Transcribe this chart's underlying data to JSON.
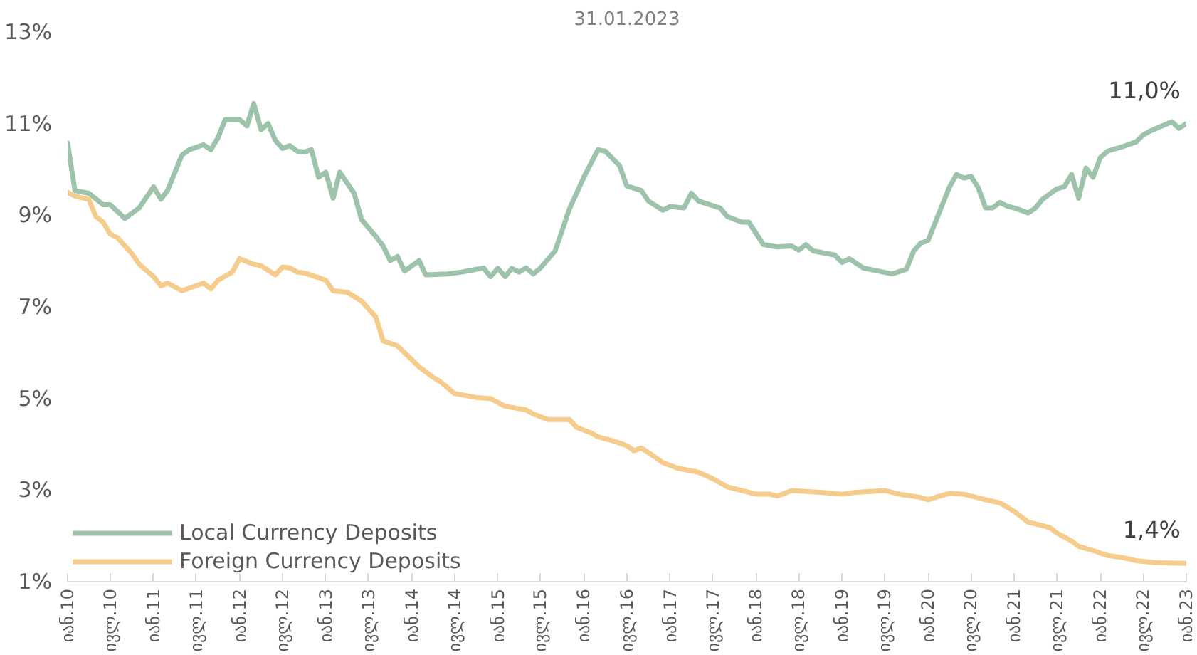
{
  "chart_data": {
    "type": "line",
    "title": "31.01.2023",
    "xlim": [
      "2010-01",
      "2023-01"
    ],
    "xticks": [
      {
        "value": "2010-01",
        "label": "იან.10"
      },
      {
        "value": "2010-07",
        "label": "ივლ.10"
      },
      {
        "value": "2011-01",
        "label": "იან.11"
      },
      {
        "value": "2011-07",
        "label": "ივლ.11"
      },
      {
        "value": "2012-01",
        "label": "იან.12"
      },
      {
        "value": "2012-07",
        "label": "ივლ.12"
      },
      {
        "value": "2013-01",
        "label": "იან.13"
      },
      {
        "value": "2013-07",
        "label": "ივლ.13"
      },
      {
        "value": "2014-01",
        "label": "იან.14"
      },
      {
        "value": "2014-07",
        "label": "ივლ.14"
      },
      {
        "value": "2015-01",
        "label": "იან.15"
      },
      {
        "value": "2015-07",
        "label": "ივლ.15"
      },
      {
        "value": "2016-01",
        "label": "იან.16"
      },
      {
        "value": "2016-07",
        "label": "ივლ.16"
      },
      {
        "value": "2017-01",
        "label": "იან.17"
      },
      {
        "value": "2017-07",
        "label": "ივლ.17"
      },
      {
        "value": "2018-01",
        "label": "იან.18"
      },
      {
        "value": "2018-07",
        "label": "ივლ.18"
      },
      {
        "value": "2019-01",
        "label": "იან.19"
      },
      {
        "value": "2019-07",
        "label": "ივლ.19"
      },
      {
        "value": "2020-01",
        "label": "იან.20"
      },
      {
        "value": "2020-07",
        "label": "ივლ.20"
      },
      {
        "value": "2021-01",
        "label": "იან.21"
      },
      {
        "value": "2021-07",
        "label": "ივლ.21"
      },
      {
        "value": "2022-01",
        "label": "იან.22"
      },
      {
        "value": "2022-07",
        "label": "ივლ.22"
      },
      {
        "value": "2023-01",
        "label": "იან.23"
      }
    ],
    "ylim": [
      1,
      13
    ],
    "yticks": [
      {
        "value": 1,
        "label": "1%"
      },
      {
        "value": 3,
        "label": "3%"
      },
      {
        "value": 5,
        "label": "5%"
      },
      {
        "value": 7,
        "label": "7%"
      },
      {
        "value": 9,
        "label": "9%"
      },
      {
        "value": 11,
        "label": "11%"
      },
      {
        "value": 13,
        "label": "13%"
      }
    ],
    "grid": false,
    "legend": "bottom left",
    "marker": "none",
    "line_style": "solid",
    "annotations": [
      {
        "text": "11,0%",
        "x": "2023-01",
        "y": 11.0
      },
      {
        "text": "1,4%",
        "x": "2023-01",
        "y": 1.4
      }
    ],
    "series": [
      {
        "name": "Local Currency Deposits",
        "color": "#9dc3ab",
        "x": [
          "2010-01",
          "2010-02",
          "2010-04",
          "2010-06",
          "2010-07",
          "2010-09",
          "2010-11",
          "2011-01",
          "2011-02",
          "2011-03",
          "2011-05",
          "2011-06",
          "2011-08",
          "2011-09",
          "2011-10",
          "2011-11",
          "2012-01",
          "2012-02",
          "2012-03",
          "2012-04",
          "2012-05",
          "2012-06",
          "2012-07",
          "2012-08",
          "2012-09",
          "2012-10",
          "2012-11",
          "2012-12",
          "2013-01",
          "2013-02",
          "2013-03",
          "2013-05",
          "2013-06",
          "2013-08",
          "2013-09",
          "2013-10",
          "2013-11",
          "2013-12",
          "2014-02",
          "2014-03",
          "2014-06",
          "2014-08",
          "2014-10",
          "2014-11",
          "2014-12",
          "2015-01",
          "2015-02",
          "2015-03",
          "2015-04",
          "2015-05",
          "2015-06",
          "2015-07",
          "2015-09",
          "2015-11",
          "2016-01",
          "2016-03",
          "2016-04",
          "2016-06",
          "2016-07",
          "2016-09",
          "2016-10",
          "2016-12",
          "2017-01",
          "2017-03",
          "2017-04",
          "2017-05",
          "2017-08",
          "2017-09",
          "2017-11",
          "2017-12",
          "2018-02",
          "2018-04",
          "2018-06",
          "2018-07",
          "2018-08",
          "2018-09",
          "2018-12",
          "2019-01",
          "2019-02",
          "2019-04",
          "2019-08",
          "2019-10",
          "2019-11",
          "2019-12",
          "2020-01",
          "2020-02",
          "2020-04",
          "2020-05",
          "2020-06",
          "2020-07",
          "2020-08",
          "2020-09",
          "2020-10",
          "2020-11",
          "2020-12",
          "2021-01",
          "2021-03",
          "2021-04",
          "2021-05",
          "2021-07",
          "2021-08",
          "2021-09",
          "2021-10",
          "2021-11",
          "2021-12",
          "2022-01",
          "2022-02",
          "2022-04",
          "2022-06",
          "2022-07",
          "2022-08",
          "2022-11",
          "2022-12",
          "2023-01"
        ],
        "values": [
          10.58,
          9.54,
          9.48,
          9.23,
          9.23,
          8.93,
          9.16,
          9.62,
          9.35,
          9.54,
          10.31,
          10.43,
          10.54,
          10.43,
          10.69,
          11.09,
          11.09,
          10.95,
          11.44,
          10.87,
          11.0,
          10.63,
          10.46,
          10.52,
          10.4,
          10.38,
          10.43,
          9.83,
          9.94,
          9.37,
          9.94,
          9.48,
          8.91,
          8.54,
          8.33,
          8.01,
          8.1,
          7.78,
          8.01,
          7.7,
          7.72,
          7.76,
          7.82,
          7.85,
          7.66,
          7.84,
          7.66,
          7.84,
          7.76,
          7.85,
          7.72,
          7.85,
          8.22,
          9.14,
          9.83,
          10.43,
          10.4,
          10.08,
          9.64,
          9.54,
          9.31,
          9.11,
          9.19,
          9.16,
          9.48,
          9.31,
          9.16,
          8.97,
          8.85,
          8.85,
          8.36,
          8.31,
          8.33,
          8.24,
          8.36,
          8.22,
          8.13,
          7.97,
          8.05,
          7.85,
          7.72,
          7.82,
          8.22,
          8.39,
          8.45,
          8.85,
          9.62,
          9.89,
          9.81,
          9.85,
          9.6,
          9.16,
          9.16,
          9.28,
          9.2,
          9.16,
          9.05,
          9.16,
          9.35,
          9.58,
          9.62,
          9.89,
          9.37,
          10.03,
          9.83,
          10.26,
          10.4,
          10.49,
          10.6,
          10.75,
          10.84,
          11.04,
          10.9,
          11.0
        ]
      },
      {
        "name": "Foreign Currency Deposits",
        "color": "#f5cc8c",
        "x": [
          "2010-01",
          "2010-02",
          "2010-04",
          "2010-05",
          "2010-06",
          "2010-07",
          "2010-08",
          "2010-10",
          "2010-11",
          "2011-01",
          "2011-02",
          "2011-03",
          "2011-05",
          "2011-08",
          "2011-09",
          "2011-10",
          "2011-12",
          "2012-01",
          "2012-03",
          "2012-04",
          "2012-06",
          "2012-07",
          "2012-08",
          "2012-09",
          "2012-10",
          "2012-12",
          "2013-01",
          "2013-02",
          "2013-04",
          "2013-06",
          "2013-08",
          "2013-09",
          "2013-11",
          "2014-02",
          "2014-04",
          "2014-05",
          "2014-07",
          "2014-10",
          "2014-12",
          "2015-02",
          "2015-05",
          "2015-06",
          "2015-08",
          "2015-11",
          "2015-12",
          "2016-02",
          "2016-03",
          "2016-05",
          "2016-07",
          "2016-08",
          "2016-09",
          "2016-11",
          "2016-12",
          "2017-02",
          "2017-05",
          "2017-07",
          "2017-09",
          "2017-11",
          "2018-01",
          "2018-03",
          "2018-04",
          "2018-06",
          "2018-10",
          "2019-01",
          "2019-03",
          "2019-07",
          "2019-09",
          "2019-12",
          "2020-01",
          "2020-02",
          "2020-04",
          "2020-06",
          "2020-09",
          "2020-11",
          "2021-01",
          "2021-03",
          "2021-04",
          "2021-06",
          "2021-07",
          "2021-09",
          "2021-10",
          "2021-12",
          "2022-02",
          "2022-04",
          "2022-06",
          "2022-09",
          "2023-01"
        ],
        "values": [
          9.5,
          9.42,
          9.34,
          8.97,
          8.85,
          8.59,
          8.51,
          8.16,
          7.93,
          7.66,
          7.46,
          7.52,
          7.35,
          7.52,
          7.39,
          7.58,
          7.76,
          8.05,
          7.93,
          7.9,
          7.7,
          7.87,
          7.85,
          7.76,
          7.74,
          7.64,
          7.58,
          7.35,
          7.32,
          7.13,
          6.78,
          6.26,
          6.15,
          5.69,
          5.46,
          5.37,
          5.11,
          5.02,
          5.0,
          4.83,
          4.75,
          4.66,
          4.54,
          4.54,
          4.37,
          4.25,
          4.16,
          4.08,
          3.97,
          3.86,
          3.92,
          3.71,
          3.6,
          3.48,
          3.39,
          3.25,
          3.07,
          2.99,
          2.91,
          2.91,
          2.87,
          2.99,
          2.95,
          2.91,
          2.95,
          2.99,
          2.91,
          2.84,
          2.79,
          2.84,
          2.93,
          2.91,
          2.79,
          2.72,
          2.53,
          2.3,
          2.26,
          2.18,
          2.06,
          1.89,
          1.77,
          1.68,
          1.57,
          1.53,
          1.46,
          1.41,
          1.4
        ]
      }
    ]
  }
}
